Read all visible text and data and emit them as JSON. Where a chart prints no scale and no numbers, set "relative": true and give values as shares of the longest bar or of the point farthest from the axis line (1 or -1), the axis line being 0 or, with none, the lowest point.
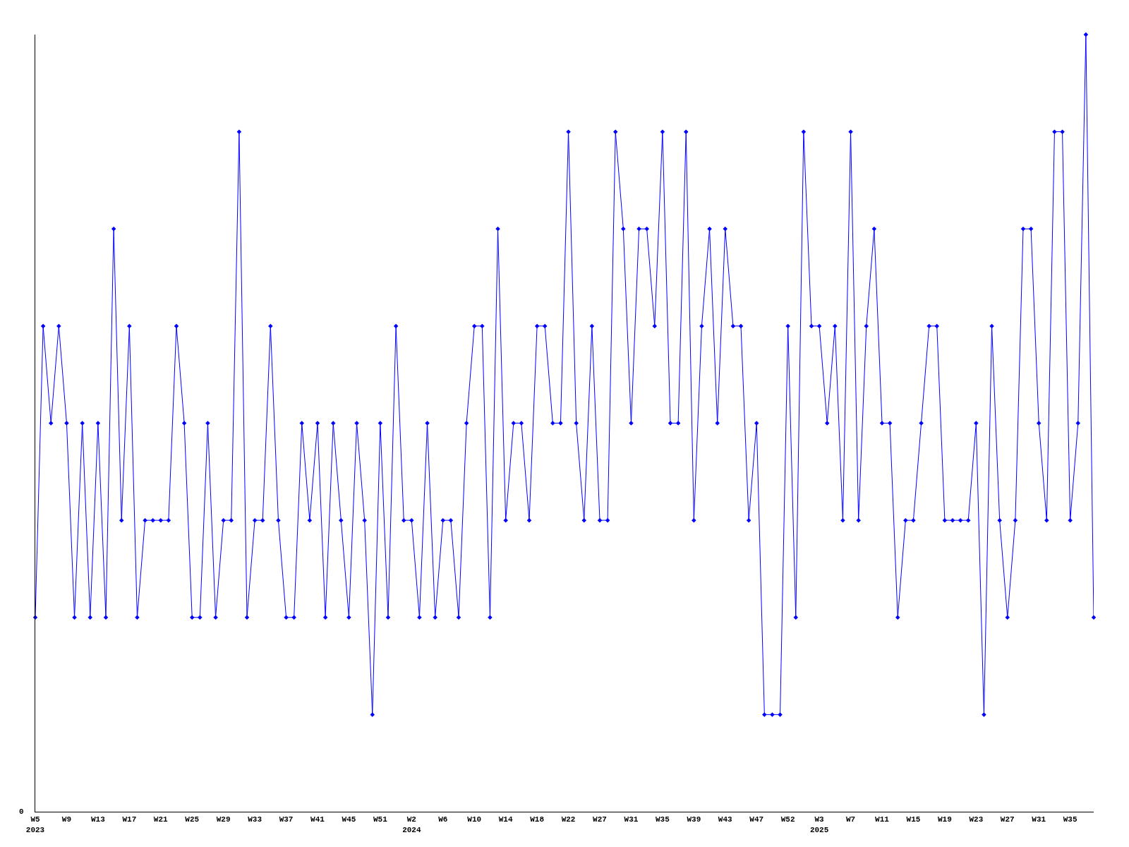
{
  "chart_data": {
    "type": "line",
    "relative": true,
    "marker": "diamond",
    "line_style": "solid",
    "categories": [
      "W5\n2023",
      null,
      null,
      null,
      "W9",
      null,
      null,
      null,
      "W13",
      null,
      null,
      null,
      "W17",
      null,
      null,
      null,
      "W21",
      null,
      null,
      null,
      "W25",
      null,
      null,
      null,
      "W29",
      null,
      null,
      null,
      "W33",
      null,
      null,
      null,
      "W37",
      null,
      null,
      null,
      "W41",
      null,
      null,
      null,
      "W45",
      null,
      null,
      null,
      "W51",
      null,
      null,
      null,
      "W2\n2024",
      null,
      null,
      null,
      "W6",
      null,
      null,
      null,
      "W10",
      null,
      null,
      null,
      "W14",
      null,
      null,
      null,
      "W18",
      null,
      null,
      null,
      "W22",
      null,
      null,
      null,
      "W27",
      null,
      null,
      null,
      "W31",
      null,
      null,
      null,
      "W35",
      null,
      null,
      null,
      "W39",
      null,
      null,
      null,
      "W43",
      null,
      null,
      null,
      "W47",
      null,
      null,
      null,
      "W52",
      null,
      null,
      null,
      "W3\n2025",
      null,
      null,
      null,
      "W7",
      null,
      null,
      null,
      "W11",
      null,
      null,
      null,
      "W15",
      null,
      null,
      null,
      "W19",
      null,
      null,
      null,
      "W23",
      null,
      null,
      null,
      "W27",
      null,
      null,
      null,
      "W31",
      null,
      null,
      null,
      "W35",
      null,
      null,
      null
    ],
    "annotations": [
      "0"
    ],
    "series": [
      {
        "color": "#0000ff",
        "values": [
          0.25,
          0.625,
          0.5,
          0.625,
          0.5,
          0.25,
          0.5,
          0.25,
          0.5,
          0.25,
          0.75,
          0.375,
          0.625,
          0.25,
          0.375,
          0.375,
          0.375,
          0.375,
          0.625,
          0.5,
          0.25,
          0.25,
          0.5,
          0.25,
          0.375,
          0.375,
          0.875,
          0.25,
          0.375,
          0.375,
          0.625,
          0.375,
          0.25,
          0.25,
          0.5,
          0.375,
          0.5,
          0.25,
          0.5,
          0.375,
          0.25,
          0.5,
          0.375,
          0.125,
          0.5,
          0.25,
          0.625,
          0.375,
          0.375,
          0.25,
          0.5,
          0.25,
          0.375,
          0.375,
          0.25,
          0.5,
          0.625,
          0.625,
          0.25,
          0.75,
          0.375,
          0.5,
          0.5,
          0.375,
          0.625,
          0.625,
          0.5,
          0.5,
          0.875,
          0.5,
          0.375,
          0.625,
          0.375,
          0.375,
          0.875,
          0.75,
          0.5,
          0.75,
          0.75,
          0.625,
          0.875,
          0.5,
          0.5,
          0.875,
          0.375,
          0.625,
          0.75,
          0.5,
          0.75,
          0.625,
          0.625,
          0.375,
          0.5,
          0.125,
          0.125,
          0.125,
          0.625,
          0.25,
          0.875,
          0.625,
          0.625,
          0.5,
          0.625,
          0.375,
          0.875,
          0.375,
          0.625,
          0.75,
          0.5,
          0.5,
          0.25,
          0.375,
          0.375,
          0.5,
          0.625,
          0.625,
          0.375,
          0.375,
          0.375,
          0.375,
          0.5,
          0.125,
          0.625,
          0.375,
          0.25,
          0.375,
          0.75,
          0.75,
          0.5,
          0.375,
          0.875,
          0.875,
          0.375,
          0.5,
          1,
          0.25
        ]
      }
    ]
  }
}
